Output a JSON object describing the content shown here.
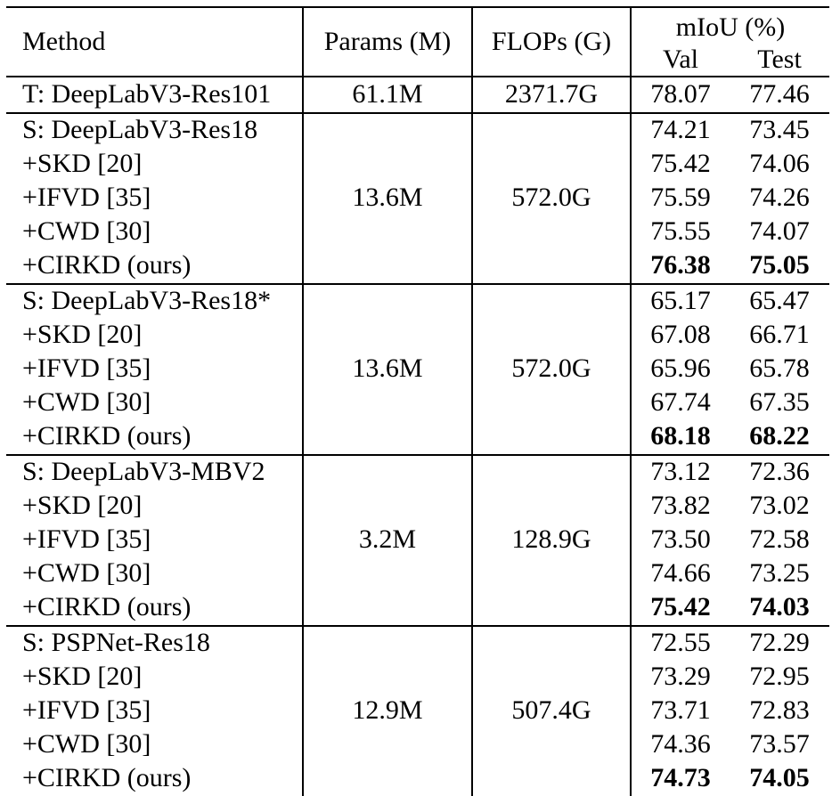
{
  "header": {
    "method": "Method",
    "params": "Params (M)",
    "flops": "FLOPs (G)",
    "miou": "mIoU (%)",
    "val": "Val",
    "test": "Test"
  },
  "teacher": {
    "method": "T: DeepLabV3-Res101",
    "params": "61.1M",
    "flops": "2371.7G",
    "val": "78.07",
    "test": "77.46"
  },
  "groups": [
    {
      "params": "13.6M",
      "flops": "572.0G",
      "rows": [
        {
          "method": "S: DeepLabV3-Res18",
          "val": "74.21",
          "test": "73.45",
          "bold": false
        },
        {
          "method": "+SKD [20]",
          "val": "75.42",
          "test": "74.06",
          "bold": false
        },
        {
          "method": "+IFVD [35]",
          "val": "75.59",
          "test": "74.26",
          "bold": false
        },
        {
          "method": "+CWD [30]",
          "val": "75.55",
          "test": "74.07",
          "bold": false
        },
        {
          "method": "+CIRKD (ours)",
          "val": "76.38",
          "test": "75.05",
          "bold": true
        }
      ]
    },
    {
      "params": "13.6M",
      "flops": "572.0G",
      "rows": [
        {
          "method": "S: DeepLabV3-Res18*",
          "val": "65.17",
          "test": "65.47",
          "bold": false
        },
        {
          "method": "+SKD [20]",
          "val": "67.08",
          "test": "66.71",
          "bold": false
        },
        {
          "method": "+IFVD [35]",
          "val": "65.96",
          "test": "65.78",
          "bold": false
        },
        {
          "method": "+CWD [30]",
          "val": "67.74",
          "test": "67.35",
          "bold": false
        },
        {
          "method": "+CIRKD (ours)",
          "val": "68.18",
          "test": "68.22",
          "bold": true
        }
      ]
    },
    {
      "params": "3.2M",
      "flops": "128.9G",
      "rows": [
        {
          "method": "S: DeepLabV3-MBV2",
          "val": "73.12",
          "test": "72.36",
          "bold": false
        },
        {
          "method": "+SKD [20]",
          "val": "73.82",
          "test": "73.02",
          "bold": false
        },
        {
          "method": "+IFVD [35]",
          "val": "73.50",
          "test": "72.58",
          "bold": false
        },
        {
          "method": "+CWD [30]",
          "val": "74.66",
          "test": "73.25",
          "bold": false
        },
        {
          "method": "+CIRKD (ours)",
          "val": "75.42",
          "test": "74.03",
          "bold": true
        }
      ]
    },
    {
      "params": "12.9M",
      "flops": "507.4G",
      "rows": [
        {
          "method": "S: PSPNet-Res18",
          "val": "72.55",
          "test": "72.29",
          "bold": false
        },
        {
          "method": "+SKD [20]",
          "val": "73.29",
          "test": "72.95",
          "bold": false
        },
        {
          "method": "+IFVD [35]",
          "val": "73.71",
          "test": "72.83",
          "bold": false
        },
        {
          "method": "+CWD [30]",
          "val": "74.36",
          "test": "73.57",
          "bold": false
        },
        {
          "method": "+CIRKD (ours)",
          "val": "74.73",
          "test": "74.05",
          "bold": true
        }
      ]
    }
  ],
  "colors": {
    "text": "#000000",
    "background": "#ffffff",
    "rule": "#000000"
  }
}
